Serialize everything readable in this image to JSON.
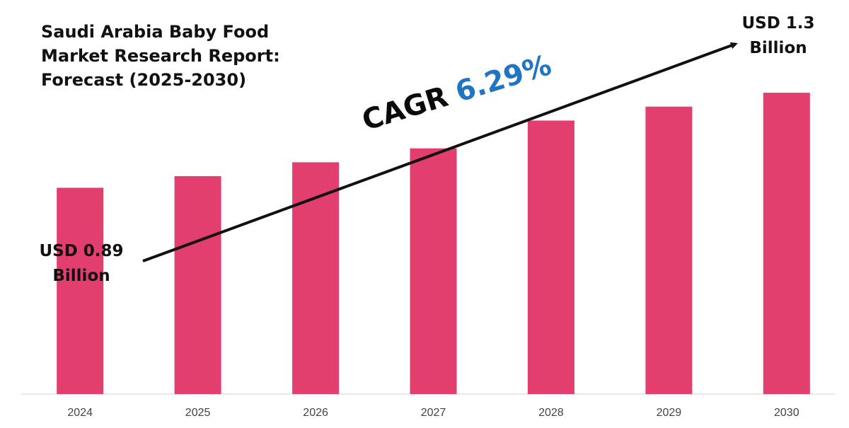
{
  "colors": {
    "bar": "#e23e6e",
    "arrow": "#111111",
    "cagr_value": "#1f74c4",
    "axis": "#d0d0d0"
  },
  "title_lines": [
    "Saudi Arabia Baby Food",
    "Market Research Report:",
    "Forecast (2025-2030)"
  ],
  "start_callout": {
    "line1": "USD 0.89",
    "line2": "Billion"
  },
  "end_callout": {
    "line1": "USD 1.3",
    "line2": "Billion"
  },
  "cagr": {
    "label": "CAGR",
    "value": "6.29%"
  },
  "chart_data": {
    "type": "bar",
    "title": "Saudi Arabia Baby Food Market Research Report: Forecast (2025-2030)",
    "categories": [
      "2024",
      "2025",
      "2026",
      "2027",
      "2028",
      "2029",
      "2030"
    ],
    "values": [
      0.89,
      0.94,
      1.0,
      1.06,
      1.18,
      1.24,
      1.3
    ],
    "unit": "USD Billion",
    "xlabel": "",
    "ylabel": "",
    "ylim": [
      0,
      1.7
    ],
    "grid": false,
    "legend": "none"
  }
}
